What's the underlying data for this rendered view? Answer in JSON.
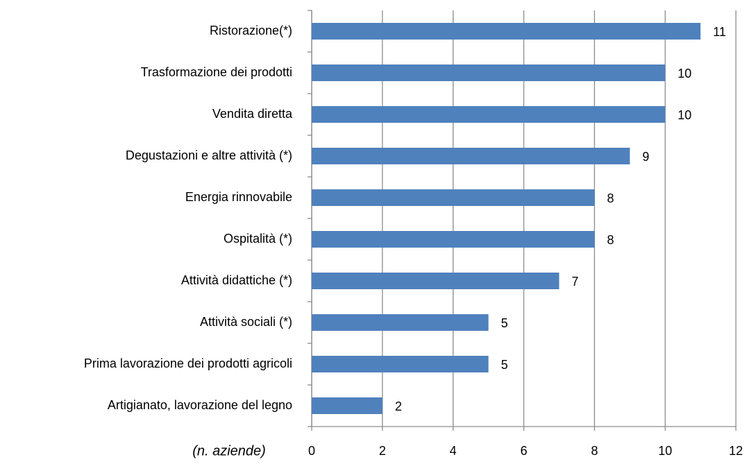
{
  "chart_data": {
    "type": "barh",
    "categories": [
      "Ristorazione(*)",
      "Trasformazione dei prodotti",
      "Vendita diretta",
      "Degustazioni e altre attività (*)",
      "Energia rinnovabile",
      "Ospitalità (*)",
      "Attività didattiche (*)",
      "Attività sociali (*)",
      "Prima lavorazione dei prodotti agricoli",
      "Artigianato, lavorazione del legno"
    ],
    "values": [
      11,
      10,
      10,
      9,
      8,
      8,
      7,
      5,
      5,
      2
    ],
    "color": "#4f81bd",
    "xlabel": "(n. aziende)",
    "xlim": [
      0,
      12
    ],
    "xticks": [
      0,
      2,
      4,
      6,
      8,
      10,
      12
    ],
    "grid": true
  }
}
